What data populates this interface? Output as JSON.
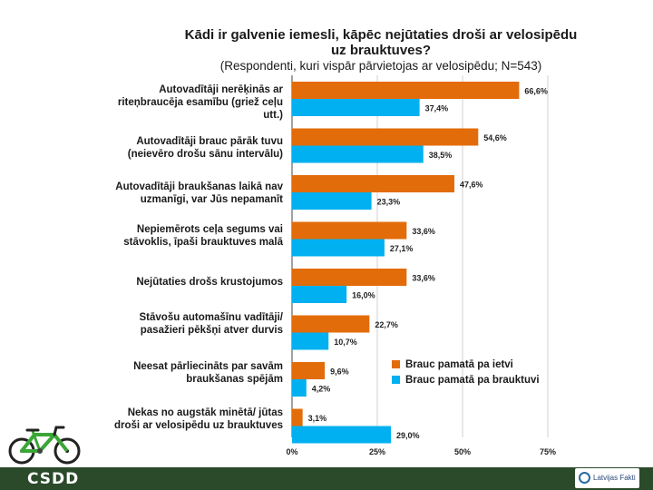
{
  "header": {
    "title": "Kādi ir galvenie iemesli, kāpēc nejūtaties droši ar velosipēdu uz brauktuves?",
    "subtitle": "(Respondenti, kuri vispār pārvietojas ar velosipēdu; N=543)"
  },
  "chart_data": {
    "type": "bar",
    "orientation": "horizontal",
    "title": "Kādi ir galvenie iemesli, kāpēc nejūtaties droši ar velosipēdu uz brauktuves?",
    "subtitle": "(Respondenti, kuri vispār pārvietojas ar velosipēdu; N=543)",
    "categories": [
      "Autovadītāji nerēķinās ar riteņbraucēja esamību (griež ceļu utt.)",
      "Autovadītāji brauc pārāk tuvu (neievēro drošu sānu intervālu)",
      "Autovadītāji braukšanas laikā nav uzmanīgi, var Jūs nepamanīt",
      "Nepiemērots ceļa segums vai stāvoklis, īpaši brauktuves malā",
      "Nejūtaties drošs krustojumos",
      "Stāvošu automašīnu vadītāji/ pasažieri pēkšņi atver durvis",
      "Neesat pārliecināts par savām braukšanas spējām",
      "Nekas no augstāk minētā/ jūtas droši ar velosipēdu uz brauktuves"
    ],
    "category_lines": [
      "Autovadītāji nerēķinās ar\nriteņbraucēja esamību (griež ceļu\nutt.)",
      "Autovadītāji brauc pārāk tuvu\n(neievēro drošu sānu intervālu)",
      "Autovadītāji braukšanas laikā nav\nuzmanīgi, var Jūs nepamanīt",
      "Nepiemērots ceļa segums vai\nstāvoklis, īpaši brauktuves malā",
      "Nejūtaties drošs krustojumos",
      "Stāvošu automašīnu vadītāji/\npasažieri pēkšņi atver durvis",
      "Neesat pārliecināts par savām\nbraukšanas spējām",
      "Nekas no augstāk minētā/ jūtas\ndroši ar velosipēdu uz brauktuves"
    ],
    "series": [
      {
        "name": "Brauc pamatā pa ietvi",
        "color": "#e36c0a",
        "values": [
          66.6,
          54.6,
          47.6,
          33.6,
          33.6,
          22.7,
          9.6,
          3.1
        ],
        "labels": [
          "66,6%",
          "54,6%",
          "47,6%",
          "33,6%",
          "33,6%",
          "22,7%",
          "9,6%",
          "3,1%"
        ]
      },
      {
        "name": "Brauc pamatā pa brauktuvi",
        "color": "#00b0f0",
        "values": [
          37.4,
          38.5,
          23.3,
          27.1,
          16.0,
          10.7,
          4.2,
          29.0
        ],
        "labels": [
          "37,4%",
          "38,5%",
          "23,3%",
          "27,1%",
          "16,0%",
          "10,7%",
          "4,2%",
          "29,0%"
        ]
      }
    ],
    "xlim": [
      0,
      75
    ],
    "xticks": [
      0,
      25,
      50,
      75
    ],
    "xtick_labels": [
      "0%",
      "25%",
      "50%",
      "75%"
    ],
    "grid": true,
    "legend_position": "lower-right"
  },
  "footer": {
    "left_logo": "CSDD",
    "right_logo": "Latvijas Fakti"
  }
}
